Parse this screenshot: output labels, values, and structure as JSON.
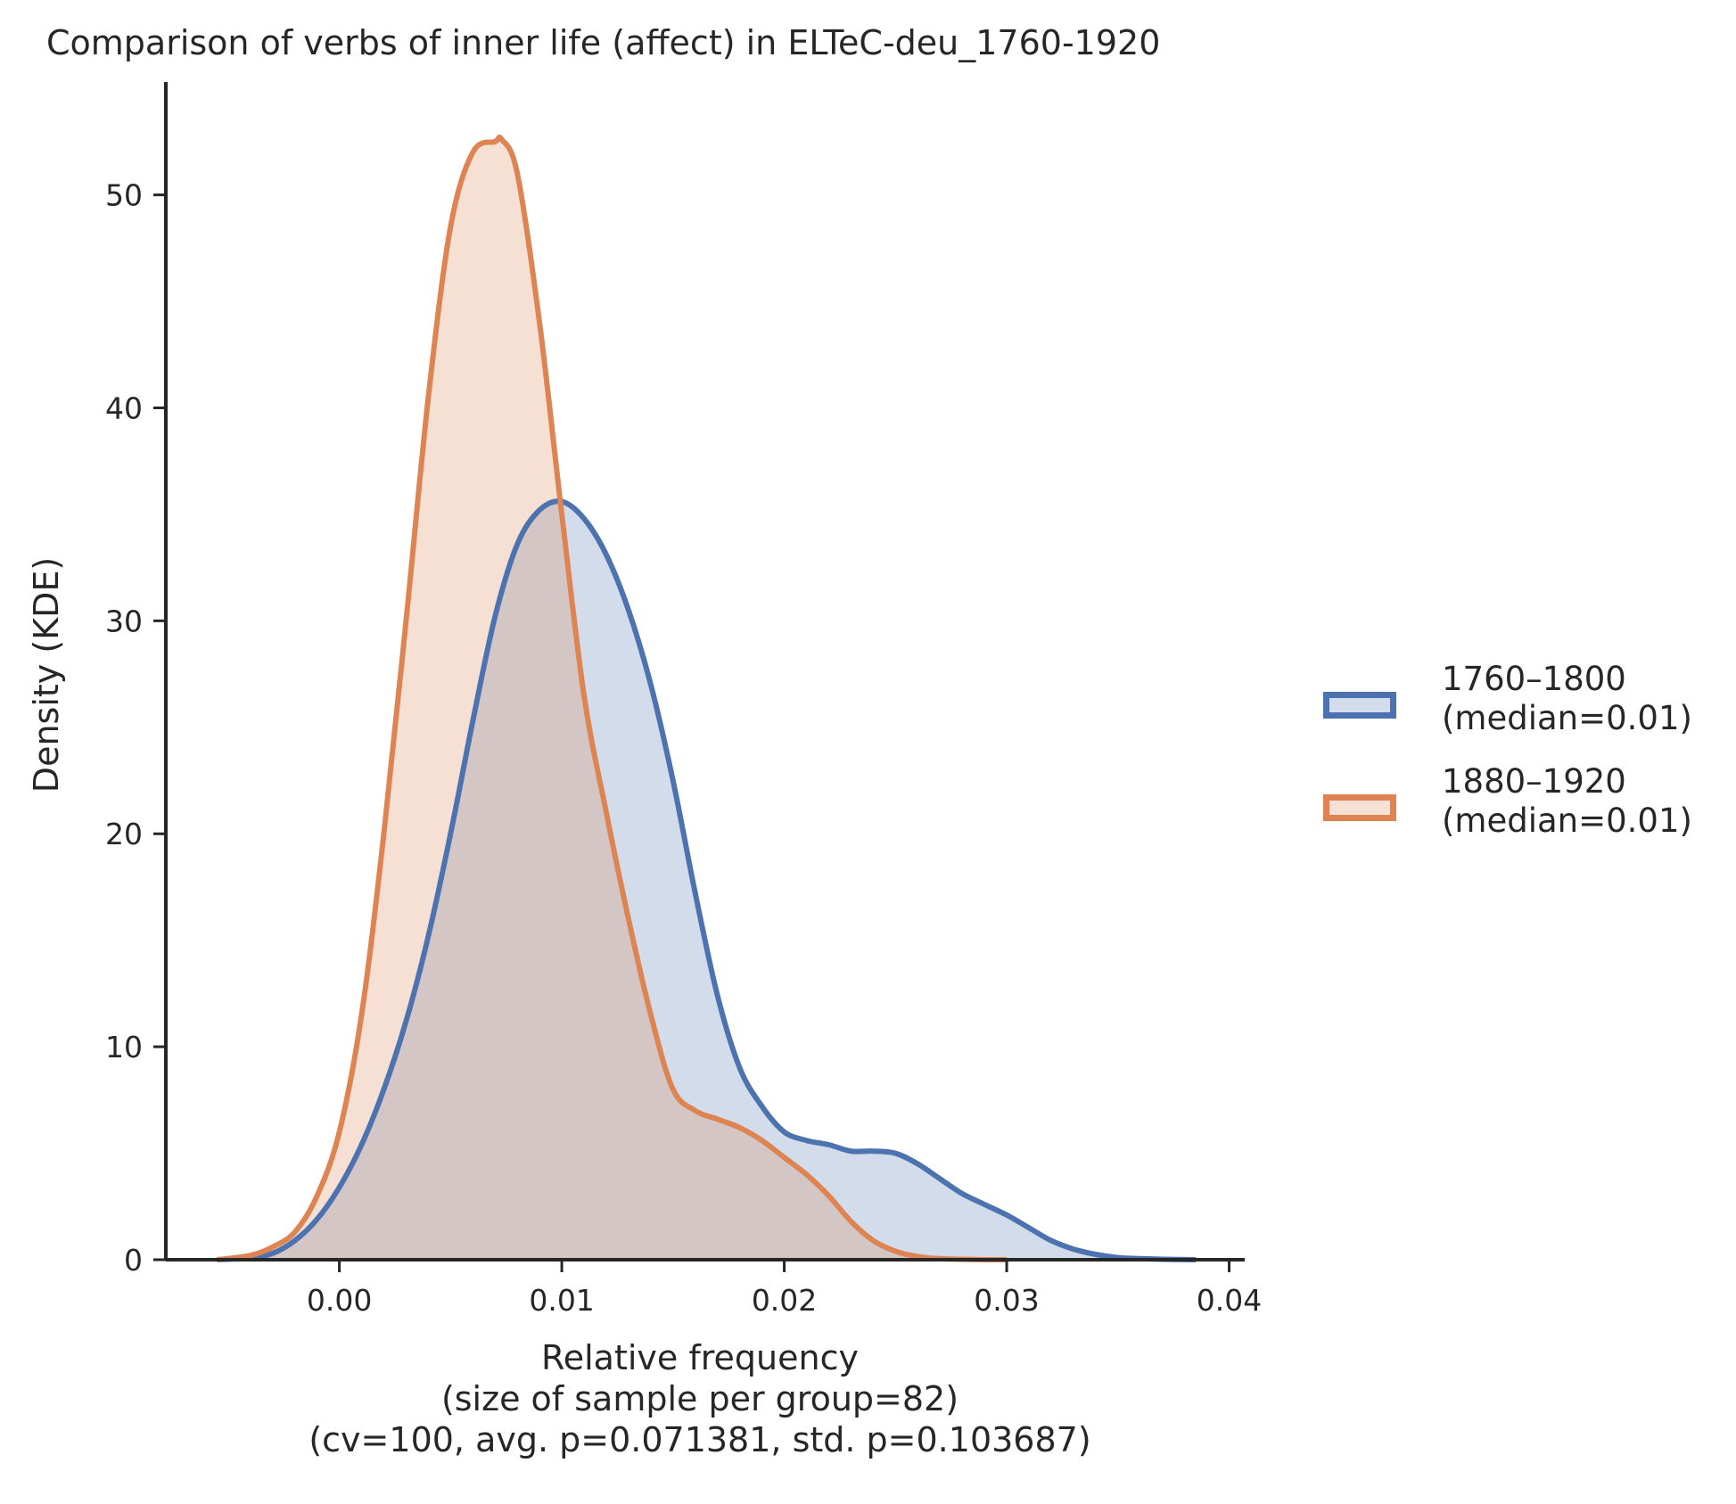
{
  "chart_data": {
    "type": "area",
    "title": "Comparison of verbs of inner life (affect) in ELTeC-deu_1760-1920",
    "xlabel_lines": [
      "Relative frequency",
      "(size of sample per group=82)",
      "(cv=100, avg. p=0.071381, std. p=0.103687)"
    ],
    "ylabel": "Density (KDE)",
    "xlim": [
      -0.0078,
      0.0407
    ],
    "ylim": [
      0,
      55.3
    ],
    "xticks": [
      0.0,
      0.01,
      0.02,
      0.03,
      0.04
    ],
    "xtick_labels": [
      "0.00",
      "0.01",
      "0.02",
      "0.03",
      "0.04"
    ],
    "yticks": [
      0,
      10,
      20,
      30,
      40,
      50
    ],
    "ytick_labels": [
      "0",
      "10",
      "20",
      "30",
      "40",
      "50"
    ],
    "grid": false,
    "legend_position": "right",
    "series": [
      {
        "name": "1760–1800",
        "legend_label": "(median=0.01)",
        "color": "#4c72b0",
        "fill": "#4c72b0",
        "x": [
          -0.0055,
          -0.004,
          -0.003,
          -0.002,
          -0.001,
          0.0,
          0.001,
          0.002,
          0.003,
          0.004,
          0.005,
          0.006,
          0.007,
          0.008,
          0.009,
          0.01,
          0.011,
          0.012,
          0.013,
          0.014,
          0.015,
          0.016,
          0.017,
          0.018,
          0.019,
          0.02,
          0.021,
          0.022,
          0.023,
          0.024,
          0.025,
          0.026,
          0.027,
          0.028,
          0.029,
          0.03,
          0.031,
          0.032,
          0.033,
          0.034,
          0.035,
          0.036,
          0.037,
          0.0385
        ],
        "y": [
          0.0,
          0.1,
          0.3,
          0.9,
          1.9,
          3.4,
          5.4,
          8.0,
          11.2,
          15.2,
          20.0,
          25.3,
          30.2,
          33.6,
          35.2,
          35.6,
          34.8,
          33.1,
          30.5,
          27.0,
          22.5,
          17.2,
          12.4,
          9.0,
          7.2,
          6.0,
          5.6,
          5.4,
          5.1,
          5.1,
          5.0,
          4.5,
          3.8,
          3.1,
          2.6,
          2.1,
          1.5,
          0.9,
          0.5,
          0.25,
          0.1,
          0.05,
          0.02,
          0.0
        ]
      },
      {
        "name": "1880–1920",
        "legend_label": "(median=0.01)",
        "color": "#dd8452",
        "fill": "#dd8452",
        "x": [
          -0.0055,
          -0.004,
          -0.003,
          -0.002,
          -0.001,
          0.0,
          0.001,
          0.002,
          0.003,
          0.004,
          0.005,
          0.006,
          0.007,
          0.0073,
          0.008,
          0.009,
          0.01,
          0.011,
          0.012,
          0.013,
          0.014,
          0.015,
          0.016,
          0.017,
          0.018,
          0.019,
          0.02,
          0.021,
          0.022,
          0.023,
          0.024,
          0.025,
          0.026,
          0.027,
          0.028,
          0.029,
          0.03
        ],
        "y": [
          0.0,
          0.2,
          0.6,
          1.3,
          3.0,
          6.0,
          11.5,
          20.0,
          30.0,
          40.5,
          48.5,
          52.0,
          52.5,
          52.6,
          51.0,
          44.0,
          35.0,
          26.5,
          21.0,
          16.0,
          11.5,
          8.0,
          7.0,
          6.6,
          6.2,
          5.6,
          4.8,
          4.0,
          3.0,
          1.8,
          0.9,
          0.4,
          0.15,
          0.05,
          0.02,
          0.0,
          0.0
        ]
      }
    ]
  }
}
